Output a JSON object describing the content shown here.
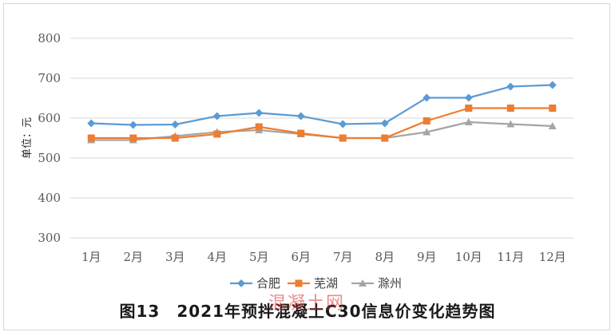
{
  "chart_data": {
    "type": "line",
    "categories": [
      "1月",
      "2月",
      "3月",
      "4月",
      "5月",
      "6月",
      "7月",
      "8月",
      "9月",
      "10月",
      "11月",
      "12月"
    ],
    "series": [
      {
        "name": "合肥",
        "color": "#5B9BD5",
        "marker": "diamond",
        "values": [
          587,
          583,
          584,
          605,
          613,
          605,
          585,
          587,
          651,
          651,
          679,
          683
        ]
      },
      {
        "name": "芜湖",
        "color": "#ED7D31",
        "marker": "square",
        "values": [
          550,
          550,
          550,
          560,
          578,
          562,
          550,
          550,
          593,
          625,
          625,
          625
        ]
      },
      {
        "name": "滁州",
        "color": "#A5A5A5",
        "marker": "triangle",
        "values": [
          545,
          545,
          555,
          565,
          570,
          560,
          550,
          550,
          565,
          590,
          585,
          580
        ]
      }
    ],
    "ylabel": "单位：元",
    "ylim": [
      300,
      800
    ],
    "yticks": [
      300,
      400,
      500,
      600,
      700,
      800
    ],
    "grid": true,
    "legend": "bottom"
  },
  "caption": "图13　2021年预拌混凝土C30信息价变化趋势图",
  "watermark": "混凝土网"
}
